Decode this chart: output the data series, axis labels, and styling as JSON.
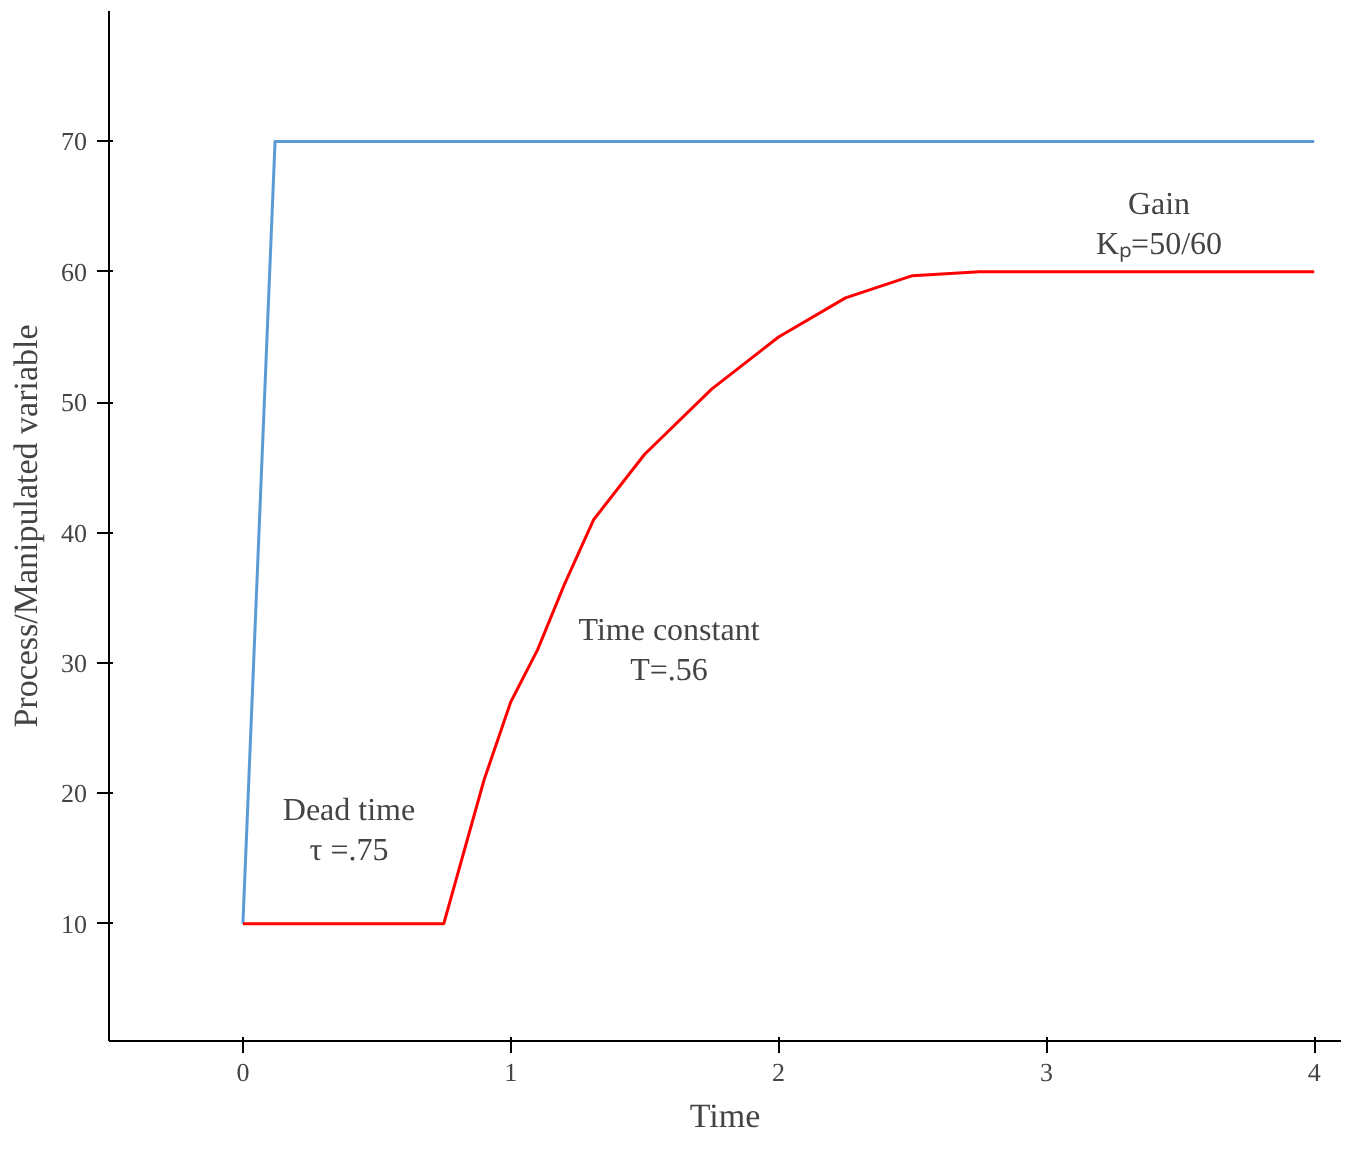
{
  "chart_data": {
    "type": "line",
    "xlabel": "Time",
    "ylabel": "Process/Manipulated variable",
    "xlim": [
      -0.5,
      4.1
    ],
    "ylim": [
      1,
      80
    ],
    "xticks": [
      0,
      1,
      2,
      3,
      4
    ],
    "yticks": [
      10,
      20,
      30,
      40,
      50,
      60,
      70
    ],
    "grid": false,
    "series": [
      {
        "color": "#5b9bd5",
        "x": [
          0,
          0.12,
          4
        ],
        "values": [
          10,
          70,
          70
        ]
      },
      {
        "color": "#ff0000",
        "x": [
          0,
          0.75,
          0.9,
          1.0,
          1.1,
          1.2,
          1.31,
          1.5,
          1.75,
          2.0,
          2.25,
          2.5,
          2.75,
          3.0,
          4.0
        ],
        "values": [
          10,
          10,
          21,
          27,
          31,
          36,
          41,
          46,
          51,
          55,
          58,
          59.7,
          60,
          60,
          60
        ]
      }
    ],
    "annotations": [
      "Gain",
      "Kₚ=50/60",
      "Time constant",
      "T=.56",
      "Dead time",
      "τ =.75"
    ]
  }
}
